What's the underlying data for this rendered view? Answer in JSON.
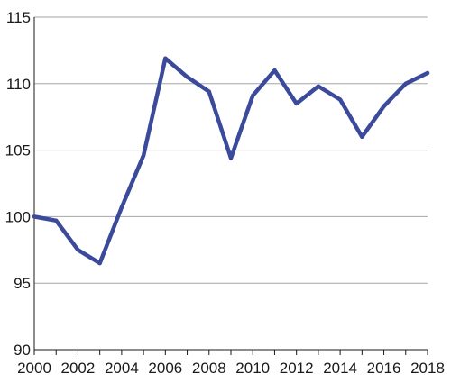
{
  "chart_data": {
    "type": "line",
    "title": "",
    "xlabel": "",
    "ylabel": "",
    "x": [
      2000,
      2001,
      2002,
      2003,
      2004,
      2005,
      2006,
      2007,
      2008,
      2009,
      2010,
      2011,
      2012,
      2013,
      2014,
      2015,
      2016,
      2017,
      2018
    ],
    "series": [
      {
        "values": [
          100.0,
          99.7,
          97.5,
          96.5,
          100.7,
          104.6,
          111.9,
          110.5,
          109.4,
          104.4,
          109.1,
          111.0,
          108.5,
          109.8,
          108.8,
          106.0,
          108.3,
          110.0,
          110.8
        ],
        "color": "#3b4a9a"
      }
    ],
    "xlim": [
      2000,
      2018
    ],
    "ylim": [
      90,
      115
    ],
    "x_ticks": [
      2000,
      2002,
      2004,
      2006,
      2008,
      2010,
      2012,
      2014,
      2016,
      2018
    ],
    "y_ticks": [
      90,
      95,
      100,
      105,
      110,
      115
    ],
    "grid": "horizontal",
    "legend": "none"
  }
}
